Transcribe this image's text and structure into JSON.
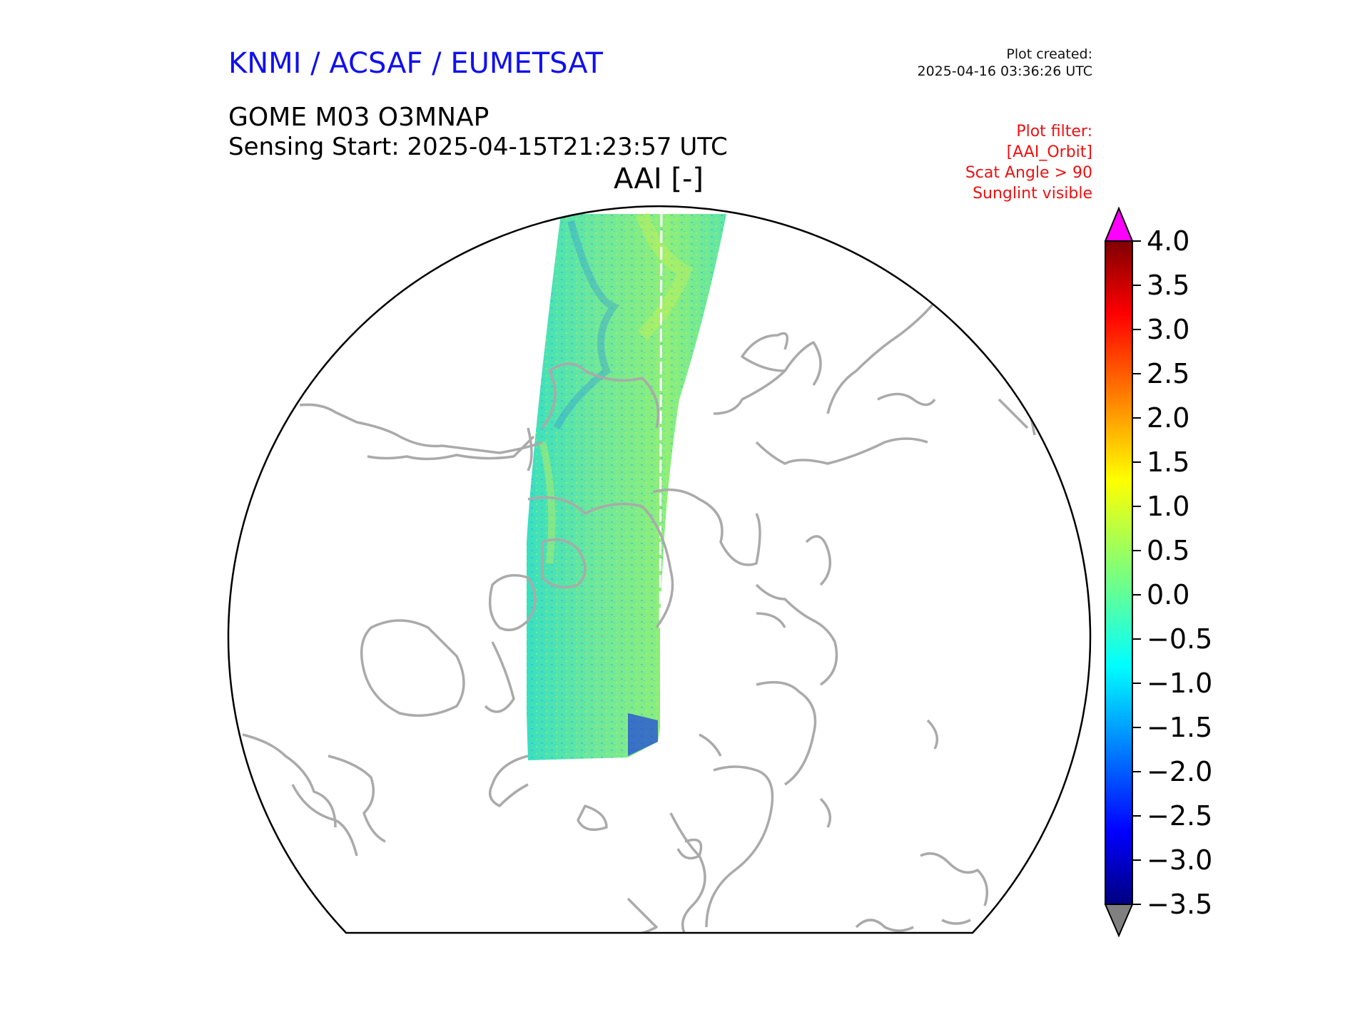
{
  "header": {
    "organization": "KNMI / ACSAF / EUMETSAT",
    "created_label": "Plot created:",
    "created_time": "2025-04-16 03:36:26 UTC",
    "product": "GOME M03 O3MNAP",
    "sensing_start": "Sensing Start: 2025-04-15T21:23:57 UTC",
    "variable": "AAI [-]"
  },
  "plot_filter": {
    "title": "Plot filter:",
    "lines": [
      "[AAI_Orbit]",
      "Scat Angle > 90",
      "Sunglint visible"
    ]
  },
  "colors": {
    "organization": "#1010ee",
    "filter_text": "#ee1010",
    "coastline": "#aaaaaa",
    "over_range": "#ff00ff",
    "under_range": "#808080"
  },
  "colorbar": {
    "min": -3.5,
    "max": 4.0,
    "ticks": [
      "4.0",
      "3.5",
      "3.0",
      "2.5",
      "2.0",
      "1.5",
      "1.0",
      "0.5",
      "0.0",
      "−0.5",
      "−1.0",
      "−1.5",
      "−2.0",
      "−2.5",
      "−3.0",
      "−3.5"
    ],
    "colormap": "jet",
    "extend": "both"
  },
  "map": {
    "projection": "north-polar",
    "data_swath": "single orbit, values mostly between −1.0 and 1.0"
  }
}
